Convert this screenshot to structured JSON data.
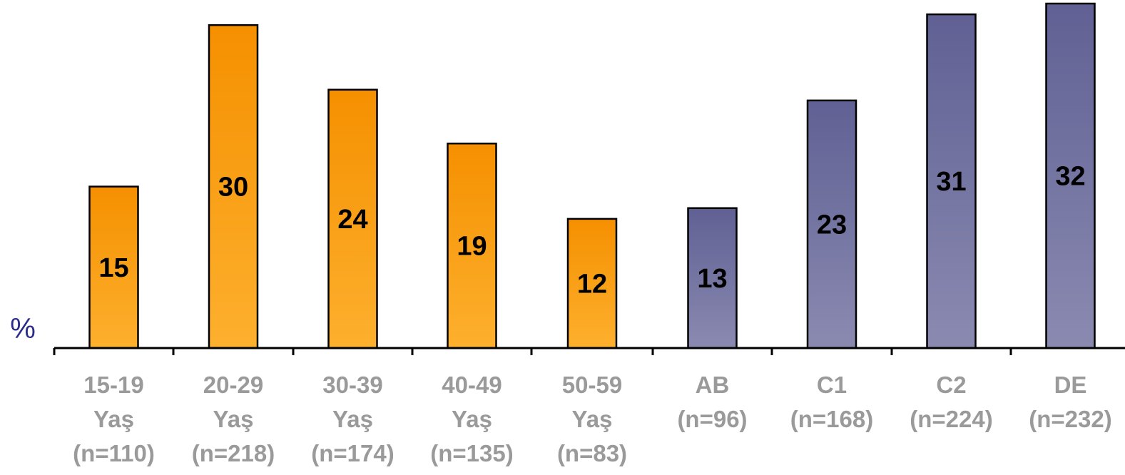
{
  "chart_data": {
    "type": "bar",
    "unit_label": "%",
    "categories": [
      [
        "15-19",
        "Yaş",
        "(n=110)"
      ],
      [
        "20-29",
        "Yaş",
        "(n=218)"
      ],
      [
        "30-39",
        "Yaş",
        "(n=174)"
      ],
      [
        "40-49",
        "Yaş",
        "(n=135)"
      ],
      [
        "50-59",
        "Yaş",
        "(n=83)"
      ],
      [
        "AB",
        "(n=96)"
      ],
      [
        "C1",
        "(n=168)"
      ],
      [
        "C2",
        "(n=224)"
      ],
      [
        "DE",
        "(n=232)"
      ]
    ],
    "values": [
      15,
      30,
      24,
      19,
      12,
      13,
      23,
      31,
      32
    ],
    "value_labels": [
      "15",
      "30",
      "24",
      "19",
      "12",
      "13",
      "23",
      "31",
      "32"
    ],
    "groups": [
      {
        "indices": [
          0,
          1,
          2,
          3,
          4
        ],
        "color": "#F99A00"
      },
      {
        "indices": [
          5,
          6,
          7,
          8
        ],
        "color": "#6B6B9E"
      }
    ],
    "ylim": [
      0,
      32
    ],
    "grid": false,
    "legend": "none",
    "colors": {
      "orange": "#F99A00",
      "orange_light": "#FDB02E",
      "purple": "#666698",
      "purple_light": "#8686AE",
      "axis": "#000000",
      "category_text": "#9A9A9A",
      "unit_text": "#2A2A8C"
    }
  }
}
